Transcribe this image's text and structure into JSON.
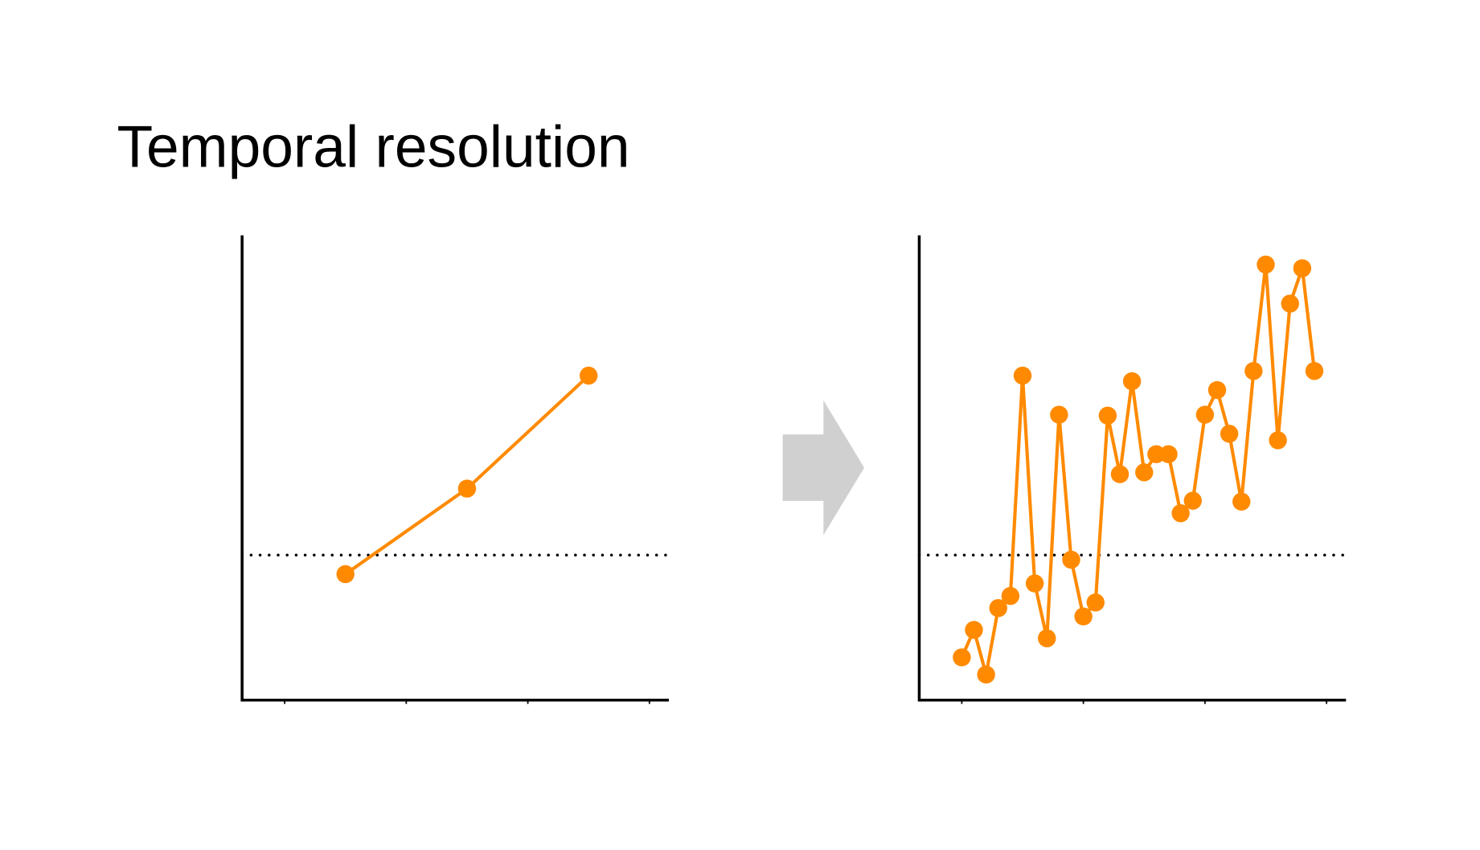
{
  "title": "Temporal resolution",
  "chart_data": [
    {
      "type": "line",
      "xlim": [
        -0.35,
        3.16
      ],
      "ylim": [
        0,
        100
      ],
      "xticks": [
        0,
        1,
        2,
        3
      ],
      "threshold": 31.2,
      "color": "#ff8a00",
      "x": [
        0.5,
        1.5,
        2.5
      ],
      "values": [
        27.1,
        45.5,
        69.8
      ]
    },
    {
      "type": "line",
      "xlim": [
        -0.35,
        3.16
      ],
      "ylim": [
        0,
        100
      ],
      "xticks": [
        0,
        1,
        2,
        3
      ],
      "threshold": 31.2,
      "color": "#ff8a00",
      "x": [
        0,
        0.1,
        0.2,
        0.3,
        0.4,
        0.5,
        0.6,
        0.7,
        0.8,
        0.9,
        1,
        1.1,
        1.2,
        1.3,
        1.4,
        1.5,
        1.6,
        1.7,
        1.8,
        1.9,
        2,
        2.1,
        2.2,
        2.3,
        2.4,
        2.5,
        2.6,
        2.7,
        2.8,
        2.9
      ],
      "values": [
        9.2,
        15.1,
        5.5,
        19.8,
        22.4,
        69.8,
        25.1,
        13.3,
        61.4,
        30.2,
        18.0,
        21.0,
        61.2,
        48.6,
        68.6,
        49.0,
        52.9,
        52.9,
        40.2,
        42.9,
        61.4,
        66.7,
        57.3,
        42.7,
        70.8,
        93.7,
        55.9,
        85.3,
        92.9,
        70.8
      ]
    }
  ]
}
